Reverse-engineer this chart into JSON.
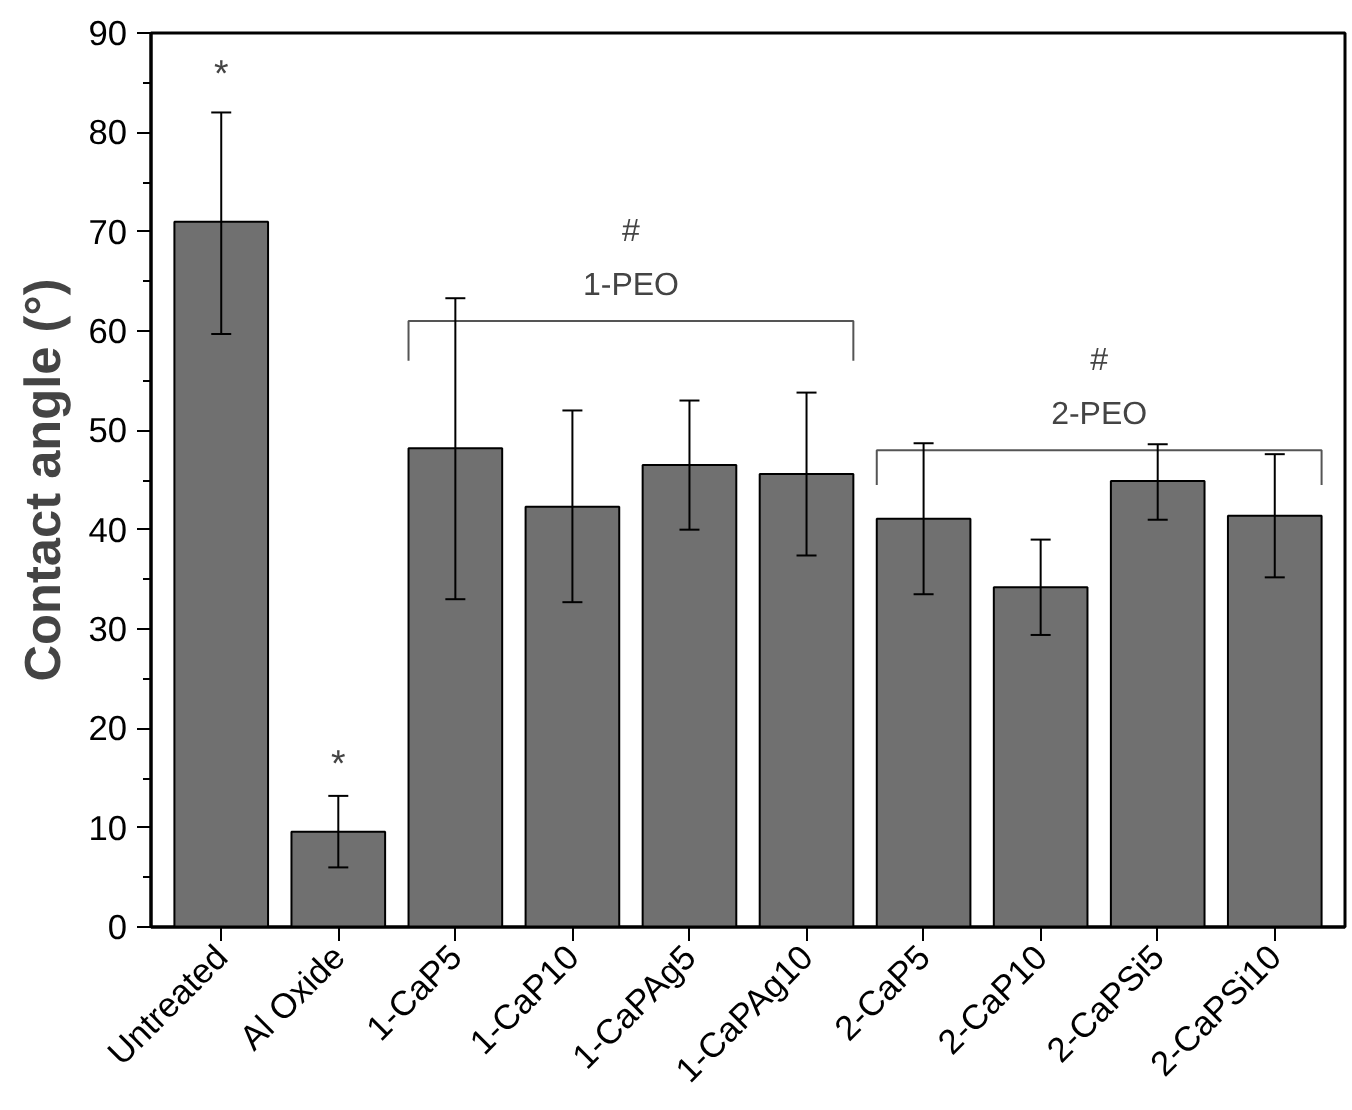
{
  "chart_data": {
    "type": "bar",
    "ylabel": "Contact angle (°)",
    "categories": [
      "Untreated",
      "Al Oxide",
      "1-CaP5",
      "1-CaP10",
      "1-CaPAg5",
      "1-CaPAg10",
      "2-CaP5",
      "2-CaP10",
      "2-CaPSi5",
      "2-CaPSi10"
    ],
    "values": [
      71,
      9.6,
      48.2,
      42.3,
      46.5,
      45.6,
      41.1,
      34.2,
      44.9,
      41.4
    ],
    "errors": [
      [
        59.7,
        82
      ],
      [
        6,
        13.2
      ],
      [
        33,
        63.3
      ],
      [
        32.7,
        52
      ],
      [
        40,
        53
      ],
      [
        37.4,
        53.8
      ],
      [
        33.5,
        48.7
      ],
      [
        29.4,
        39
      ],
      [
        41,
        48.6
      ],
      [
        35.2,
        47.6
      ]
    ],
    "color": "#707070",
    "ylim": [
      0,
      90
    ],
    "yticks": [
      0,
      10,
      20,
      30,
      40,
      50,
      60,
      70,
      80,
      90
    ],
    "grid": false,
    "annotations": [
      "*",
      "*",
      "#",
      "1-PEO",
      "#",
      "2-PEO"
    ]
  }
}
